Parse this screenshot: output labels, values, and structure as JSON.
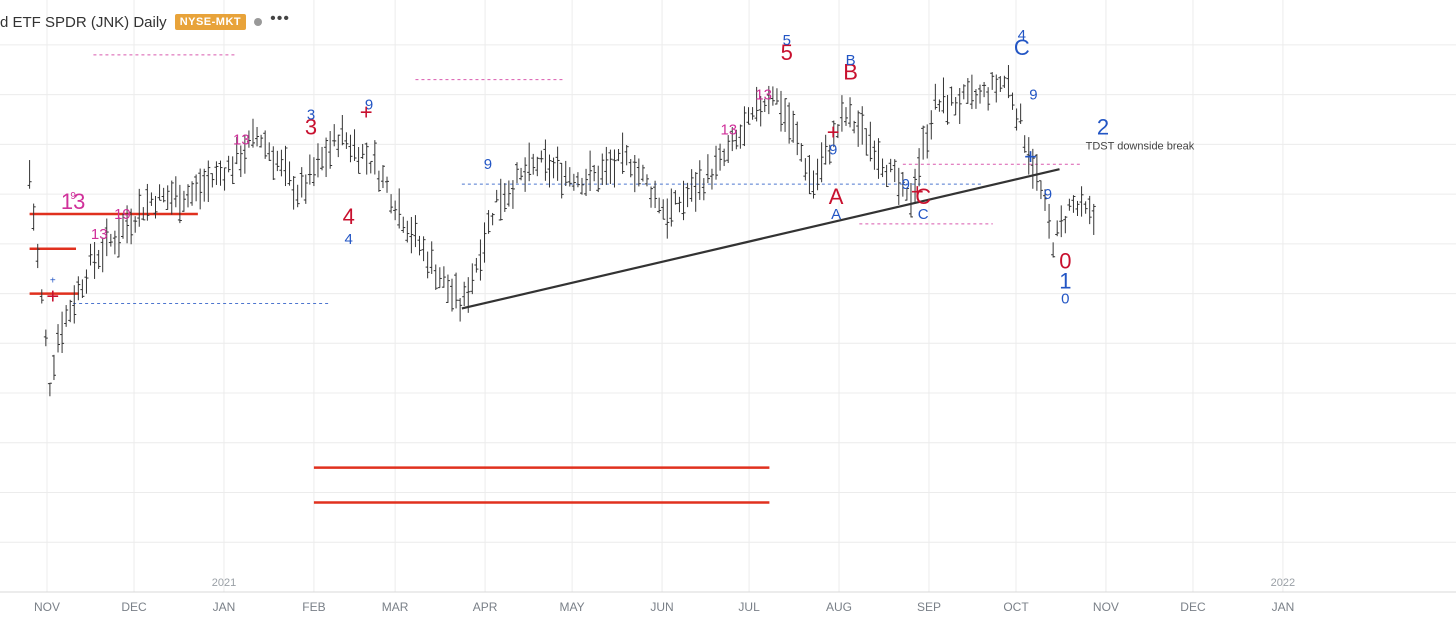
{
  "header": {
    "title": "d ETF SPDR (JNK) Daily",
    "exchange_badge": "NYSE-MKT",
    "more_glyph": "•••"
  },
  "colors": {
    "bar": "#333333",
    "trendline": "#333333",
    "red_levels": "#e0301e",
    "magenta": "#d0309a",
    "blue": "#2255c4",
    "crimson": "#c8102e",
    "grid": "#ececec"
  },
  "chart_data": {
    "type": "ohlc",
    "symbol": "JNK",
    "interval": "Daily",
    "x_axis": {
      "months": [
        "NOV",
        "DEC",
        "JAN",
        "FEB",
        "MAR",
        "APR",
        "MAY",
        "JUN",
        "JUL",
        "AUG",
        "SEP",
        "OCT",
        "NOV",
        "DEC",
        "JAN"
      ],
      "years": [
        "2021",
        "2022"
      ]
    },
    "price_path": [
      [
        "2020-10-26",
        84
      ],
      [
        "2020-11-02",
        42
      ],
      [
        "2020-11-05",
        52
      ],
      [
        "2020-11-16",
        66
      ],
      [
        "2020-11-30",
        75
      ],
      [
        "2020-12-07",
        79
      ],
      [
        "2020-12-21",
        80
      ],
      [
        "2021-01-04",
        86
      ],
      [
        "2021-01-13",
        92
      ],
      [
        "2021-01-27",
        80
      ],
      [
        "2021-02-10",
        92
      ],
      [
        "2021-02-22",
        86
      ],
      [
        "2021-03-08",
        71
      ],
      [
        "2021-03-24",
        57
      ],
      [
        "2021-04-05",
        79
      ],
      [
        "2021-04-19",
        86
      ],
      [
        "2021-05-06",
        83
      ],
      [
        "2021-05-21",
        87
      ],
      [
        "2021-06-03",
        76
      ],
      [
        "2021-06-21",
        86
      ],
      [
        "2021-07-01",
        94
      ],
      [
        "2021-07-09",
        101
      ],
      [
        "2021-07-16",
        93
      ],
      [
        "2021-07-23",
        82
      ],
      [
        "2021-08-03",
        96
      ],
      [
        "2021-08-13",
        90
      ],
      [
        "2021-08-25",
        78
      ],
      [
        "2021-09-03",
        98
      ],
      [
        "2021-09-17",
        99
      ],
      [
        "2021-09-28",
        103
      ],
      [
        "2021-10-08",
        84
      ],
      [
        "2021-10-14",
        70
      ],
      [
        "2021-10-20",
        78
      ],
      [
        "2021-10-28",
        75
      ]
    ],
    "trendline": {
      "from": [
        "2021-03-24",
        57
      ],
      "to": [
        "2021-10-16",
        85
      ]
    },
    "red_level_lines": [
      {
        "from": "2020-10-26",
        "to": "2020-12-23",
        "value": 76
      },
      {
        "from": "2020-10-26",
        "to": "2020-11-11",
        "value": 69
      },
      {
        "from": "2020-10-26",
        "to": "2020-11-12",
        "value": 60
      },
      {
        "from": "2021-02-01",
        "to": "2021-07-08",
        "value": 25
      },
      {
        "from": "2021-02-01",
        "to": "2021-07-08",
        "value": 18
      }
    ],
    "dashed_levels": [
      {
        "from": "2020-11-17",
        "to": "2021-01-05",
        "value": 108,
        "color": "magenta"
      },
      {
        "from": "2021-03-08",
        "to": "2021-04-28",
        "value": 103,
        "color": "magenta"
      },
      {
        "from": "2020-11-10",
        "to": "2021-02-06",
        "value": 58,
        "color": "blue"
      },
      {
        "from": "2021-03-24",
        "to": "2021-09-19",
        "value": 82,
        "color": "blue"
      },
      {
        "from": "2021-08-08",
        "to": "2021-09-23",
        "value": 74,
        "color": "magenta"
      },
      {
        "from": "2021-08-23",
        "to": "2021-10-23",
        "value": 86,
        "color": "magenta"
      }
    ],
    "text_annotations": [
      {
        "text": "TDST downside break",
        "at": [
          "2021-10-25",
          89
        ]
      }
    ],
    "count_labels": [
      {
        "text": "13",
        "at": [
          "2020-11-10",
          77
        ],
        "color": "magenta",
        "size": "large"
      },
      {
        "text": "9",
        "at": [
          "2020-11-10",
          79
        ],
        "color": "magenta",
        "size": "small"
      },
      {
        "text": "+",
        "at": [
          "2020-11-03",
          58
        ],
        "color": "crimson",
        "size": "large"
      },
      {
        "text": "+",
        "at": [
          "2020-11-03",
          62
        ],
        "color": "blue",
        "size": "small"
      },
      {
        "text": "19",
        "at": [
          "2020-11-27",
          75
        ],
        "color": "magenta",
        "size": "medium"
      },
      {
        "text": "3",
        "at": [
          "2021-01-31",
          92
        ],
        "color": "crimson",
        "size": "large"
      },
      {
        "text": "3",
        "at": [
          "2021-01-31",
          95
        ],
        "color": "blue",
        "size": "medium"
      },
      {
        "text": "4",
        "at": [
          "2021-02-13",
          74
        ],
        "color": "crimson",
        "size": "large"
      },
      {
        "text": "4",
        "at": [
          "2021-02-13",
          70
        ],
        "color": "blue",
        "size": "medium"
      },
      {
        "text": "9",
        "at": [
          "2021-02-20",
          97
        ],
        "color": "blue",
        "size": "medium"
      },
      {
        "text": "5",
        "at": [
          "2021-07-14",
          107
        ],
        "color": "crimson",
        "size": "large"
      },
      {
        "text": "5",
        "at": [
          "2021-07-14",
          110
        ],
        "color": "blue",
        "size": "medium"
      },
      {
        "text": "A",
        "at": [
          "2021-07-31",
          78
        ],
        "color": "crimson",
        "size": "large"
      },
      {
        "text": "A",
        "at": [
          "2021-07-31",
          75
        ],
        "color": "blue",
        "size": "medium"
      },
      {
        "text": "B",
        "at": [
          "2021-08-05",
          103
        ],
        "color": "crimson",
        "size": "large"
      },
      {
        "text": "B",
        "at": [
          "2021-08-05",
          106
        ],
        "color": "blue",
        "size": "medium"
      },
      {
        "text": "C",
        "at": [
          "2021-08-30",
          78
        ],
        "color": "crimson",
        "size": "large"
      },
      {
        "text": "C",
        "at": [
          "2021-08-30",
          75
        ],
        "color": "blue",
        "size": "medium"
      },
      {
        "text": "C",
        "at": [
          "2021-10-03",
          108
        ],
        "color": "blue",
        "size": "large"
      },
      {
        "text": "4",
        "at": [
          "2021-10-03",
          111
        ],
        "color": "blue",
        "size": "medium"
      },
      {
        "text": "9",
        "at": [
          "2021-10-07",
          99
        ],
        "color": "blue",
        "size": "medium"
      },
      {
        "text": "2",
        "at": [
          "2021-10-31",
          92
        ],
        "color": "blue",
        "size": "large"
      },
      {
        "text": "0",
        "at": [
          "2021-10-18",
          65
        ],
        "color": "crimson",
        "size": "large"
      },
      {
        "text": "1",
        "at": [
          "2021-10-18",
          61
        ],
        "color": "blue",
        "size": "large"
      },
      {
        "text": "0",
        "at": [
          "2021-10-18",
          58
        ],
        "color": "blue",
        "size": "medium"
      },
      {
        "text": "9",
        "at": [
          "2021-10-12",
          79
        ],
        "color": "blue",
        "size": "medium"
      },
      {
        "text": "9",
        "at": [
          "2021-08-24",
          81
        ],
        "color": "blue",
        "size": "medium"
      },
      {
        "text": "9",
        "at": [
          "2021-07-30",
          88
        ],
        "color": "blue",
        "size": "medium"
      },
      {
        "text": "9",
        "at": [
          "2021-04-02",
          85
        ],
        "color": "blue",
        "size": "medium"
      },
      {
        "text": "13",
        "at": [
          "2021-01-07",
          90
        ],
        "color": "magenta",
        "size": "medium"
      },
      {
        "text": "13",
        "at": [
          "2021-06-24",
          92
        ],
        "color": "magenta",
        "size": "medium"
      },
      {
        "text": "13",
        "at": [
          "2021-07-06",
          99
        ],
        "color": "magenta",
        "size": "medium"
      },
      {
        "text": "13",
        "at": [
          "2020-11-19",
          71
        ],
        "color": "magenta",
        "size": "medium"
      },
      {
        "text": "+",
        "at": [
          "2021-02-19",
          95
        ],
        "color": "crimson",
        "size": "large"
      },
      {
        "text": "+",
        "at": [
          "2021-07-30",
          91
        ],
        "color": "crimson",
        "size": "large"
      },
      {
        "text": "+",
        "at": [
          "2021-08-28",
          79
        ],
        "color": "crimson",
        "size": "large"
      },
      {
        "text": "+",
        "at": [
          "2021-10-06",
          86
        ],
        "color": "blue",
        "size": "large"
      }
    ]
  }
}
